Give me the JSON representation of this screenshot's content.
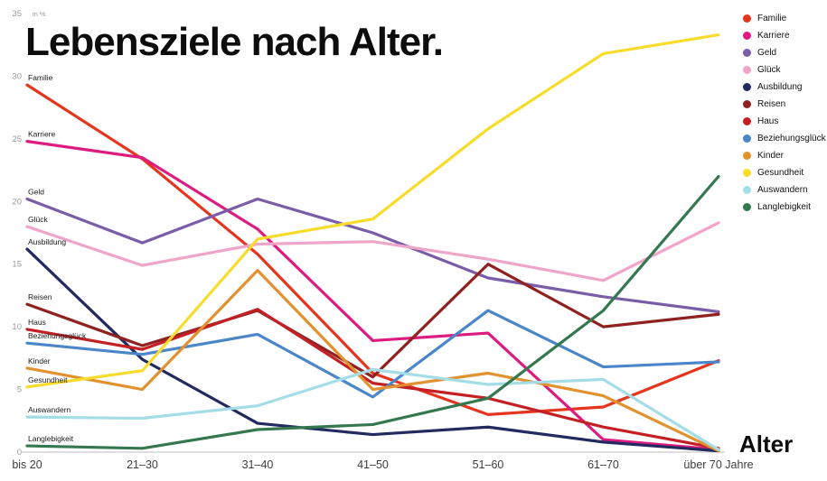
{
  "title": "Lebensziele nach Alter.",
  "y_axis": {
    "unit_label": "in %",
    "tick_values": [
      0,
      5,
      10,
      15,
      20,
      25,
      30,
      35
    ]
  },
  "x_axis": {
    "label": "Alter",
    "categories": [
      "bis 20",
      "21–30",
      "31–40",
      "41–50",
      "51–60",
      "61–70",
      "über 70 Jahre"
    ]
  },
  "chart_data": {
    "type": "line",
    "title": "Lebensziele nach Alter.",
    "xlabel": "Alter",
    "ylabel": "in %",
    "ylim": [
      0,
      35
    ],
    "grid": false,
    "legend_position": "top-right",
    "categories": [
      "bis 20",
      "21–30",
      "31–40",
      "41–50",
      "51–60",
      "61–70",
      "über 70 Jahre"
    ],
    "series": [
      {
        "name": "Familie",
        "color": "#e6351f",
        "values": [
          29.3,
          23.4,
          15.8,
          6.3,
          3.0,
          3.6,
          7.3
        ]
      },
      {
        "name": "Karriere",
        "color": "#de1c7f",
        "values": [
          24.8,
          23.5,
          17.8,
          8.9,
          9.5,
          1.0,
          0.2
        ]
      },
      {
        "name": "Geld",
        "color": "#7a5da8",
        "values": [
          20.2,
          16.7,
          20.2,
          17.5,
          13.9,
          12.4,
          11.2
        ]
      },
      {
        "name": "Glück",
        "color": "#efa5c9",
        "values": [
          18.0,
          14.9,
          16.6,
          16.8,
          15.4,
          13.7,
          18.3
        ]
      },
      {
        "name": "Ausbildung",
        "color": "#232a60",
        "values": [
          16.2,
          7.4,
          2.3,
          1.4,
          2.0,
          0.8,
          0.1
        ]
      },
      {
        "name": "Reisen",
        "color": "#8f2220",
        "values": [
          11.8,
          8.5,
          11.3,
          6.0,
          15.0,
          10.0,
          11.0
        ]
      },
      {
        "name": "Haus",
        "color": "#c32026",
        "values": [
          9.8,
          8.2,
          11.4,
          5.5,
          4.3,
          2.0,
          0.3
        ]
      },
      {
        "name": "Beziehungsglück",
        "color": "#4a86c8",
        "values": [
          8.7,
          7.8,
          9.4,
          4.4,
          11.3,
          6.8,
          7.2
        ]
      },
      {
        "name": "Kinder",
        "color": "#e2912f",
        "values": [
          6.7,
          5.0,
          14.5,
          5.0,
          6.3,
          4.5,
          0.1
        ]
      },
      {
        "name": "Gesundheit",
        "color": "#f8dc2c",
        "values": [
          5.2,
          6.5,
          17.0,
          18.6,
          25.8,
          31.8,
          33.3
        ]
      },
      {
        "name": "Auswandern",
        "color": "#a5dde7",
        "values": [
          2.8,
          2.7,
          3.7,
          6.6,
          5.4,
          5.8,
          0.2
        ]
      },
      {
        "name": "Langlebigkeit",
        "color": "#35784f",
        "values": [
          0.5,
          0.3,
          1.8,
          2.2,
          4.3,
          11.3,
          22.0
        ]
      }
    ]
  }
}
